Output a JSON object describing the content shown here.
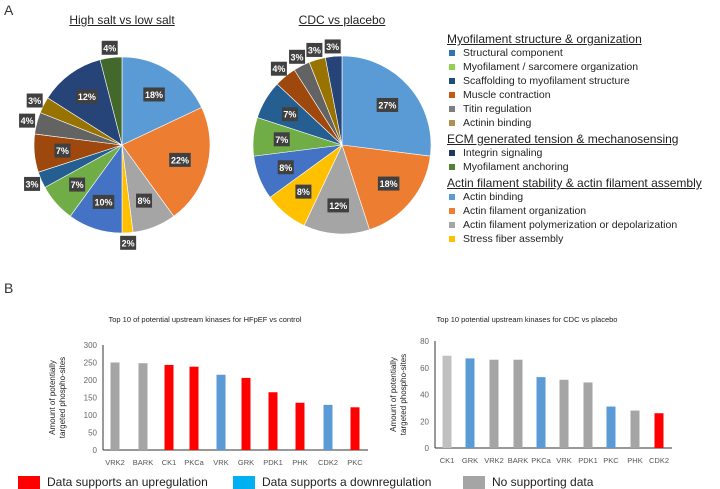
{
  "panels": {
    "a": "A",
    "b": "B"
  },
  "chart_data": [
    {
      "type": "pie",
      "title": "High salt vs low salt",
      "slices": [
        {
          "category": "Actin binding",
          "value": 18,
          "label": "18%",
          "color": "#5b9bd5"
        },
        {
          "category": "Actin filament organization",
          "value": 22,
          "label": "22%",
          "color": "#ed7d31"
        },
        {
          "category": "Actin filament polymerization or depolarization",
          "value": 8,
          "label": "8%",
          "color": "#a5a5a5"
        },
        {
          "category": "Stress fiber assembly",
          "value": 2,
          "label": "2%",
          "color": "#ffc000"
        },
        {
          "category": "Structural component",
          "value": 10,
          "label": "10%",
          "color": "#4472c4"
        },
        {
          "category": "Myofilament / sarcomere organization",
          "value": 7,
          "label": "7%",
          "color": "#70ad47"
        },
        {
          "category": "Scaffolding to myofilament structure",
          "value": 3,
          "label": "3%",
          "color": "#255e91"
        },
        {
          "category": "Muscle contraction",
          "value": 7,
          "label": "7%",
          "color": "#9e480e"
        },
        {
          "category": "Titin regulation",
          "value": 4,
          "label": "4%",
          "color": "#636363"
        },
        {
          "category": "Actinin binding",
          "value": 3,
          "label": "3%",
          "color": "#997300"
        },
        {
          "category": "Integrin signaling",
          "value": 12,
          "label": "12%",
          "color": "#264478"
        },
        {
          "category": "Myofilament anchoring",
          "value": 4,
          "label": "4%",
          "color": "#43682b"
        }
      ]
    },
    {
      "type": "pie",
      "title": "CDC vs placebo",
      "slices": [
        {
          "category": "Actin binding",
          "value": 27,
          "label": "27%",
          "color": "#5b9bd5"
        },
        {
          "category": "Actin filament organization",
          "value": 18,
          "label": "18%",
          "color": "#ed7d31"
        },
        {
          "category": "Actin filament polymerization or depolarization",
          "value": 12,
          "label": "12%",
          "color": "#a5a5a5"
        },
        {
          "category": "Stress fiber assembly",
          "value": 8,
          "label": "8%",
          "color": "#ffc000"
        },
        {
          "category": "Structural component",
          "value": 8,
          "label": "8%",
          "color": "#4472c4"
        },
        {
          "category": "Myofilament / sarcomere organization",
          "value": 7,
          "label": "7%",
          "color": "#70ad47"
        },
        {
          "category": "Scaffolding to myofilament structure",
          "value": 7,
          "label": "7%",
          "color": "#255e91"
        },
        {
          "category": "Muscle contraction",
          "value": 4,
          "label": "4%",
          "color": "#9e480e"
        },
        {
          "category": "Titin regulation",
          "value": 3,
          "label": "3%",
          "color": "#636363"
        },
        {
          "category": "Actinin binding",
          "value": 3,
          "label": "3%",
          "color": "#997300"
        },
        {
          "category": "Integrin signaling",
          "value": 3,
          "label": "3%",
          "color": "#264478"
        }
      ]
    },
    {
      "type": "bar",
      "title": "Top 10 of potential upstream kinases for HFpEF vs control",
      "ylabel": "Amount of potentially targeted phospho-sites",
      "ylim": [
        0,
        300
      ],
      "yticks": [
        0,
        50,
        100,
        150,
        200,
        250,
        300
      ],
      "categories": [
        "VRK2",
        "BARK",
        "CK1",
        "PKCa",
        "VRK",
        "GRK",
        "PDK1",
        "PHK",
        "CDK2",
        "PKC"
      ],
      "values": [
        250,
        248,
        243,
        238,
        215,
        206,
        165,
        135,
        129,
        122
      ],
      "colors": [
        "#a5a5a5",
        "#a5a5a5",
        "#ff0000",
        "#ff0000",
        "#5b9bd5",
        "#ff0000",
        "#ff0000",
        "#ff0000",
        "#5b9bd5",
        "#ff0000"
      ]
    },
    {
      "type": "bar",
      "title": "Top 10 potential upstream kinases for CDC vs placebo",
      "ylabel": "Amount of potentially targeted phospho-sites",
      "ylim": [
        0,
        80
      ],
      "yticks": [
        0,
        20,
        40,
        60,
        80
      ],
      "categories": [
        "CK1",
        "GRK",
        "VRK2",
        "BARK",
        "PKCa",
        "VRK",
        "PDK1",
        "PKC",
        "PHK",
        "CDK2"
      ],
      "values": [
        69,
        67,
        66,
        66,
        53,
        51,
        49,
        31,
        28,
        26
      ],
      "colors": [
        "#c0c0c0",
        "#5b9bd5",
        "#a5a5a5",
        "#a5a5a5",
        "#5b9bd5",
        "#a5a5a5",
        "#a5a5a5",
        "#5b9bd5",
        "#a5a5a5",
        "#ff0000"
      ]
    }
  ],
  "pie_legend": [
    {
      "heading": "Myofilament structure & organization",
      "items": [
        {
          "label": "Structural component",
          "color": "#2e75b6"
        },
        {
          "label": "Myofilament / sarcomere organization",
          "color": "#92d050"
        },
        {
          "label": "Scaffolding to myofilament structure",
          "color": "#1f4e79"
        },
        {
          "label": "Muscle contraction",
          "color": "#c55a11"
        },
        {
          "label": "Titin regulation",
          "color": "#7f7f7f"
        },
        {
          "label": "Actinin binding",
          "color": "#b09050"
        }
      ]
    },
    {
      "heading": "ECM generated tension & mechanosensing",
      "items": [
        {
          "label": "Integrin signaling",
          "color": "#203864"
        },
        {
          "label": "Myofilament anchoring",
          "color": "#548235"
        }
      ]
    },
    {
      "heading": "Actin filament stability & actin filament assembly",
      "items": [
        {
          "label": "Actin binding",
          "color": "#5b9bd5"
        },
        {
          "label": "Actin filament organization",
          "color": "#ed7d31"
        },
        {
          "label": "Actin filament polymerization or depolarization",
          "color": "#a5a5a5"
        },
        {
          "label": "Stress fiber assembly",
          "color": "#ffc000"
        }
      ]
    }
  ],
  "bar_legend": [
    {
      "label": "Data supports an upregulation",
      "color": "#ff0000"
    },
    {
      "label": "Data supports a downregulation",
      "color": "#00b0f0"
    },
    {
      "label": "No supporting data",
      "color": "#a5a5a5"
    }
  ]
}
